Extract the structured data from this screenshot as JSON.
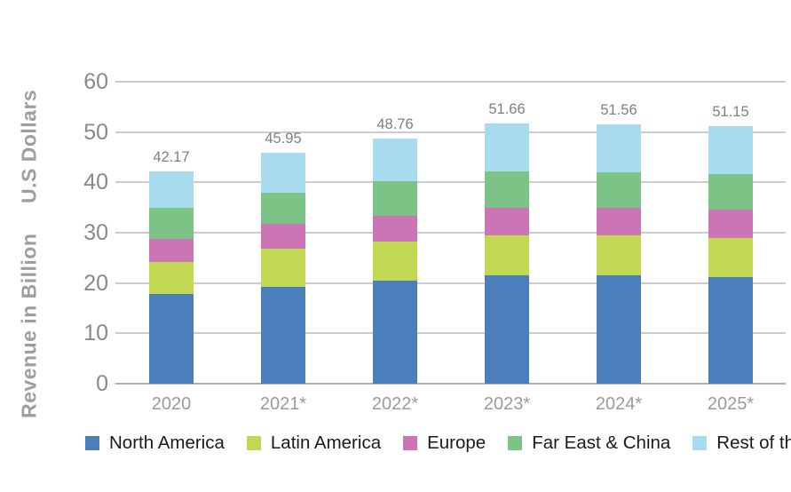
{
  "chart_data": {
    "type": "bar",
    "stacked": true,
    "ylabel_line1": "Revenue in Billion",
    "ylabel_line2": "U.S Dollars",
    "categories": [
      "2020",
      "2021*",
      "2022*",
      "2023*",
      "2024*",
      "2025*"
    ],
    "series": [
      {
        "name": "North America",
        "color": "#4b7fbc",
        "values": [
          17.9,
          19.2,
          20.5,
          21.6,
          21.6,
          21.2
        ]
      },
      {
        "name": "Latin America",
        "color": "#c1d952",
        "values": [
          6.35,
          7.6,
          7.7,
          7.9,
          7.9,
          7.8
        ]
      },
      {
        "name": "Europe",
        "color": "#cb75b4",
        "values": [
          4.5,
          5.0,
          5.2,
          5.4,
          5.4,
          5.6
        ]
      },
      {
        "name": "Far East & China",
        "color": "#7cc386",
        "values": [
          6.2,
          6.2,
          6.9,
          7.2,
          7.06,
          7.0
        ]
      },
      {
        "name": "Rest of the world",
        "color": "#a9dbee",
        "values": [
          7.22,
          7.95,
          8.46,
          9.56,
          9.6,
          9.55
        ]
      }
    ],
    "totals": [
      "42.17",
      "45.95",
      "48.76",
      "51.66",
      "51.56",
      "51.15"
    ],
    "y_ticks": [
      0,
      10,
      20,
      30,
      40,
      50,
      60
    ],
    "ylim": [
      0,
      60
    ],
    "grid": true,
    "legend_position": "bottom"
  }
}
